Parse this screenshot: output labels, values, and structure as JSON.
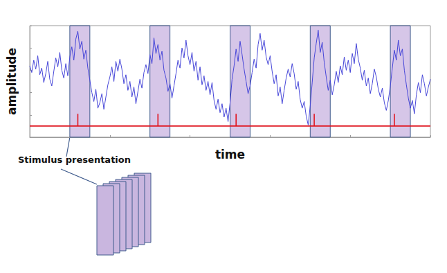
{
  "chart_data": {
    "type": "line",
    "xlabel": "time",
    "ylabel": "amplitude",
    "annotation": "Stimulus presentation",
    "xlim": [
      0,
      100
    ],
    "ylim": [
      0,
      10
    ],
    "xticks": [
      0,
      20,
      40,
      60,
      80,
      100
    ],
    "yticks": [
      0,
      2,
      4,
      6,
      8,
      10
    ],
    "tick_labels": false,
    "grid": false,
    "stimulus_windows": [
      [
        10,
        15
      ],
      [
        30,
        35
      ],
      [
        50,
        55
      ],
      [
        70,
        75
      ],
      [
        90,
        95
      ]
    ],
    "series": [
      {
        "color": "#4646d8",
        "x": [
          0,
          0.5,
          1,
          1.5,
          2,
          2.5,
          3,
          3.5,
          4,
          4.5,
          5,
          5.5,
          6,
          6.5,
          7,
          7.5,
          8,
          8.5,
          9,
          9.5,
          10,
          10.5,
          11,
          11.5,
          12,
          12.5,
          13,
          13.5,
          14,
          14.5,
          15,
          15.5,
          16,
          16.5,
          17,
          17.5,
          18,
          18.5,
          19,
          19.5,
          20,
          20.5,
          21,
          21.5,
          22,
          22.5,
          23,
          23.5,
          24,
          24.5,
          25,
          25.5,
          26,
          26.5,
          27,
          27.5,
          28,
          28.5,
          29,
          29.5,
          30,
          30.5,
          31,
          31.5,
          32,
          32.5,
          33,
          33.5,
          34,
          34.5,
          35,
          35.5,
          36,
          36.5,
          37,
          37.5,
          38,
          38.5,
          39,
          39.5,
          40,
          40.5,
          41,
          41.5,
          42,
          42.5,
          43,
          43.5,
          44,
          44.5,
          45,
          45.5,
          46,
          46.5,
          47,
          47.5,
          48,
          48.5,
          49,
          49.5,
          50,
          50.5,
          51,
          51.5,
          52,
          52.5,
          53,
          53.5,
          54,
          54.5,
          55,
          55.5,
          56,
          56.5,
          57,
          57.5,
          58,
          58.5,
          59,
          59.5,
          60,
          60.5,
          61,
          61.5,
          62,
          62.5,
          63,
          63.5,
          64,
          64.5,
          65,
          65.5,
          66,
          66.5,
          67,
          67.5,
          68,
          68.5,
          69,
          69.5,
          70,
          70.5,
          71,
          71.5,
          72,
          72.5,
          73,
          73.5,
          74,
          74.5,
          75,
          75.5,
          76,
          76.5,
          77,
          77.5,
          78,
          78.5,
          79,
          79.5,
          80,
          80.5,
          81,
          81.5,
          82,
          82.5,
          83,
          83.5,
          84,
          84.5,
          85,
          85.5,
          86,
          86.5,
          87,
          87.5,
          88,
          88.5,
          89,
          89.5,
          90,
          90.5,
          91,
          91.5,
          92,
          92.5,
          93,
          93.5,
          94,
          94.5,
          95,
          95.5,
          96,
          96.5,
          97,
          97.5,
          98,
          98.5,
          99,
          99.5,
          100
        ],
        "values": [
          6.4,
          5.8,
          6.9,
          6.1,
          7.3,
          5.6,
          6.2,
          4.9,
          5.7,
          6.8,
          5.2,
          4.6,
          5.9,
          7.1,
          6.3,
          7.6,
          6.0,
          5.3,
          6.6,
          5.5,
          7.2,
          8.1,
          6.9,
          8.8,
          9.5,
          7.9,
          8.6,
          7.0,
          7.8,
          6.2,
          5.1,
          4.0,
          3.2,
          4.3,
          2.6,
          3.1,
          3.9,
          2.5,
          3.6,
          4.7,
          5.4,
          6.3,
          5.0,
          6.8,
          5.9,
          7.0,
          6.1,
          4.8,
          5.6,
          4.2,
          5.0,
          3.6,
          4.5,
          3.0,
          4.1,
          5.2,
          4.4,
          5.8,
          6.5,
          5.7,
          7.4,
          6.6,
          8.9,
          7.5,
          8.3,
          6.9,
          7.7,
          6.0,
          5.3,
          4.1,
          4.8,
          3.5,
          4.6,
          5.7,
          6.9,
          6.2,
          8.0,
          7.1,
          8.7,
          7.3,
          6.5,
          7.6,
          5.9,
          6.8,
          5.1,
          6.3,
          4.7,
          5.5,
          4.2,
          5.0,
          3.8,
          4.9,
          3.3,
          2.5,
          3.4,
          2.2,
          3.0,
          1.8,
          2.6,
          1.4,
          3.1,
          5.2,
          6.4,
          7.9,
          6.8,
          8.6,
          7.4,
          6.1,
          5.0,
          3.9,
          4.6,
          5.8,
          7.0,
          6.2,
          8.3,
          9.3,
          7.8,
          8.7,
          7.2,
          6.5,
          7.3,
          5.9,
          4.8,
          5.6,
          3.7,
          4.5,
          3.0,
          4.2,
          5.3,
          6.1,
          5.4,
          6.6,
          5.7,
          4.3,
          5.0,
          3.4,
          2.6,
          3.2,
          1.9,
          1.1,
          2.8,
          4.9,
          7.1,
          8.4,
          9.6,
          7.6,
          8.5,
          6.7,
          5.4,
          4.2,
          5.1,
          3.8,
          4.7,
          5.9,
          4.9,
          6.4,
          5.6,
          7.2,
          6.0,
          6.9,
          5.8,
          7.5,
          6.6,
          8.4,
          7.0,
          6.2,
          5.1,
          6.0,
          4.6,
          5.3,
          3.9,
          4.8,
          6.1,
          5.4,
          4.3,
          3.6,
          4.4,
          3.1,
          2.4,
          3.3,
          4.6,
          6.2,
          7.8,
          6.9,
          8.7,
          7.3,
          7.9,
          6.0,
          4.7,
          3.5,
          2.6,
          3.3,
          2.1,
          3.8,
          4.9,
          4.0,
          5.6,
          4.8,
          3.7,
          4.5,
          5.2
        ]
      },
      {
        "color": "#e0141e",
        "x": [
          0,
          12,
          12,
          12,
          32,
          32,
          32,
          51.5,
          51.5,
          51.5,
          71,
          71,
          71,
          91,
          91,
          91,
          100
        ],
        "values": [
          1,
          1,
          2.1,
          1,
          1,
          2.1,
          1,
          1,
          2.1,
          1,
          1,
          2.1,
          1,
          1,
          2.1,
          1,
          1
        ]
      }
    ]
  }
}
